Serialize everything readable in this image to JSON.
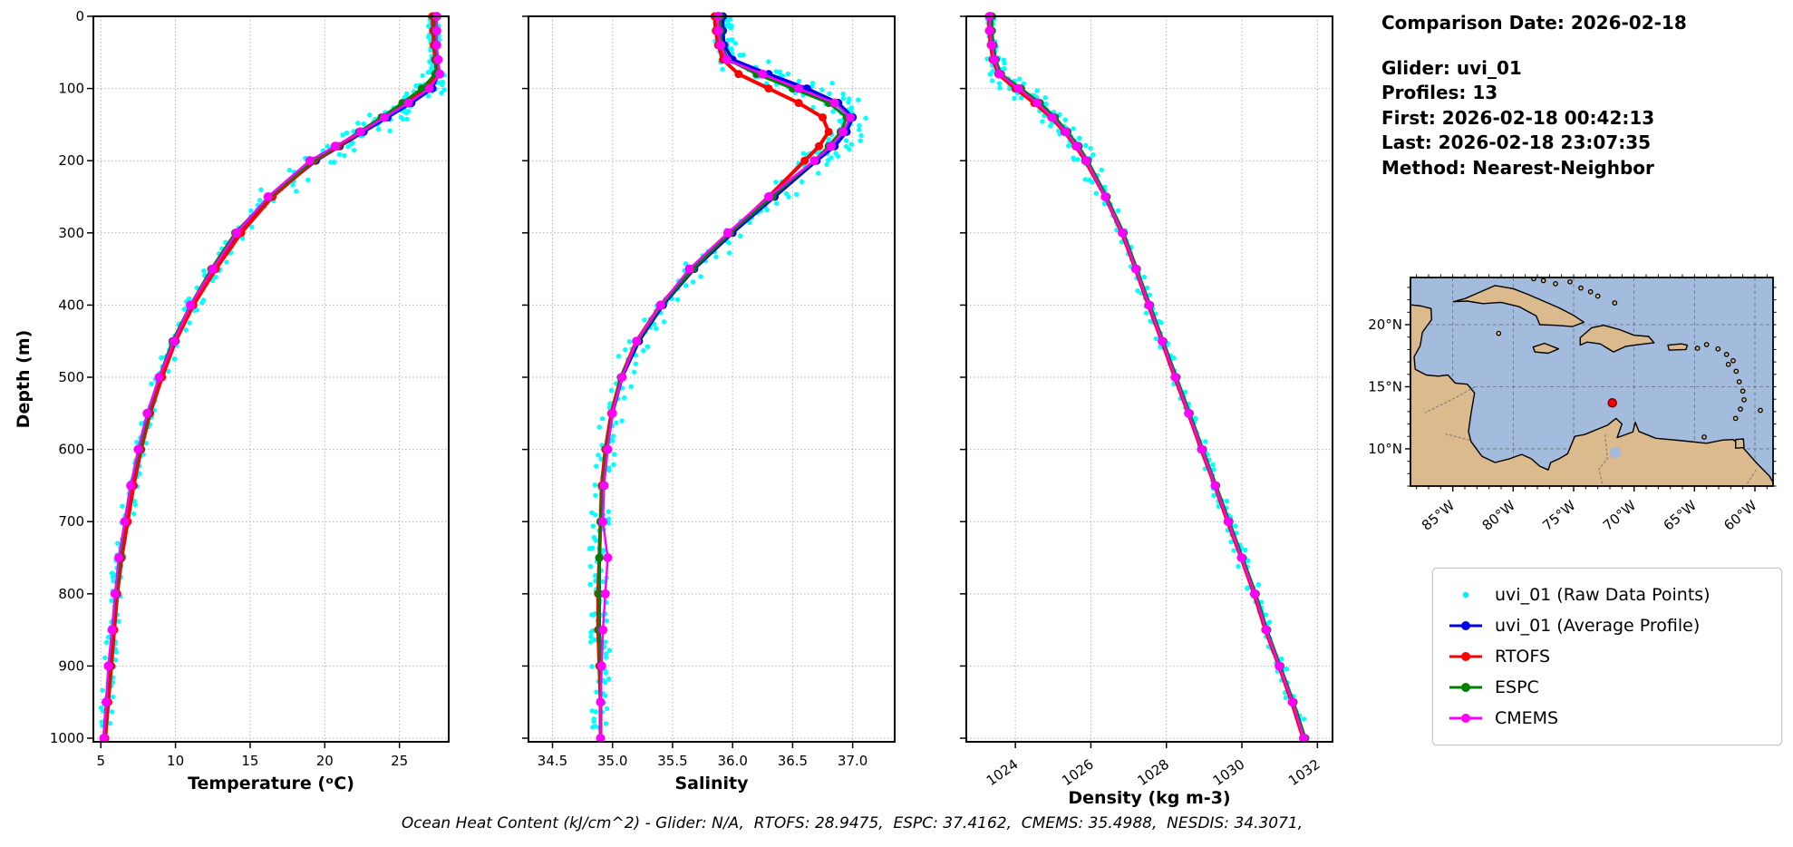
{
  "header": {
    "comparison_date": "Comparison Date: 2026-02-18",
    "glider": "Glider: uvi_01",
    "profiles": "Profiles: 13",
    "first": "First: 2026-02-18 00:42:13",
    "last": "Last: 2026-02-18 23:07:35",
    "method": "Method: Nearest-Neighbor"
  },
  "caption": {
    "text": "Ocean Heat Content (kJ/cm^2) - Glider: N/A,  RTOFS: 28.9475,  ESPC: 37.4162,  CMEMS: 35.4988,  NESDIS: 34.3071,"
  },
  "legend": {
    "items": [
      {
        "label": "uvi_01 (Raw Data Points)",
        "color": "#00EEEE",
        "style": "dot"
      },
      {
        "label": "uvi_01 (Average Profile)",
        "color": "#0000EE",
        "style": "line-dot"
      },
      {
        "label": "RTOFS",
        "color": "#FF0000",
        "style": "line-dot"
      },
      {
        "label": "ESPC",
        "color": "#008000",
        "style": "line-dot"
      },
      {
        "label": "CMEMS",
        "color": "#FF00FF",
        "style": "line-dot"
      }
    ]
  },
  "map": {
    "lon_range": [
      -88.5,
      -58.5
    ],
    "lat_range": [
      7,
      23.8
    ],
    "lon_tick_labels": [
      "85°W",
      "80°W",
      "75°W",
      "70°W",
      "65°W",
      "60°W"
    ],
    "lon_tick_values": [
      -85,
      -80,
      -75,
      -70,
      -65,
      -60
    ],
    "lat_tick_labels": [
      "10°N",
      "15°N",
      "20°N"
    ],
    "lat_tick_values": [
      10,
      15,
      20
    ],
    "marker": {
      "lon": -71.8,
      "lat": 13.7,
      "color": "#ff0000",
      "edge": "#7a0000"
    },
    "ocean_color": "#a3bcdd",
    "land_color": "#dbbb8d"
  },
  "chart_data": [
    {
      "type": "line",
      "xlabel": "Temperature (ᵒC)",
      "ylabel": "Depth (m)",
      "xlim": [
        4.5,
        28.3
      ],
      "ylim": [
        0,
        1005
      ],
      "xticks": [
        5,
        10,
        15,
        20,
        25
      ],
      "xtick_labels": [
        "5",
        "10",
        "15",
        "20",
        "25"
      ],
      "yticks": [
        0,
        100,
        200,
        300,
        400,
        500,
        600,
        700,
        800,
        900,
        1000
      ],
      "ytick_labels": [
        "0",
        "100",
        "200",
        "300",
        "400",
        "500",
        "600",
        "700",
        "800",
        "900",
        "1000"
      ],
      "grid": true,
      "depths": [
        0,
        20,
        40,
        60,
        80,
        100,
        120,
        140,
        160,
        180,
        200,
        250,
        300,
        350,
        400,
        450,
        500,
        550,
        600,
        650,
        700,
        750,
        800,
        850,
        900,
        950,
        1000
      ],
      "series": [
        {
          "name": "uvi_01 (Raw Data Points)",
          "style": "cloud",
          "color": "#00FFFF",
          "spread_base": 0.4,
          "spread_thermocline": 0.85,
          "thermocline_range": [
            70,
            250
          ],
          "values": [
            27.3,
            27.3,
            27.35,
            27.4,
            27.6,
            27.2,
            25.8,
            24.2,
            22.6,
            21.0,
            19.4,
            16.4,
            14.2,
            12.6,
            11.1,
            9.9,
            9.0,
            8.2,
            7.6,
            7.1,
            6.7,
            6.3,
            6.0,
            5.8,
            5.6,
            5.4,
            5.2
          ]
        },
        {
          "name": "uvi_01 (Average Profile)",
          "style": "line",
          "color": "#0000EE",
          "lw": 3.5,
          "ms": 4.5,
          "values": [
            27.3,
            27.3,
            27.35,
            27.4,
            27.6,
            27.2,
            25.8,
            24.2,
            22.6,
            21.0,
            19.4,
            16.4,
            14.2,
            12.6,
            11.1,
            9.9,
            9.0,
            8.2,
            7.6,
            7.1,
            6.7,
            6.3,
            6.0,
            5.8,
            5.6,
            5.4,
            5.2
          ]
        },
        {
          "name": "RTOFS",
          "style": "line",
          "color": "#FF0000",
          "lw": 4,
          "ms": 4.5,
          "values": [
            27.2,
            27.25,
            27.3,
            27.4,
            27.5,
            26.8,
            25.4,
            23.9,
            22.4,
            20.9,
            19.3,
            16.5,
            14.4,
            12.7,
            11.2,
            10.0,
            9.1,
            8.3,
            7.7,
            7.2,
            6.8,
            6.4,
            6.1,
            5.9,
            5.7,
            5.5,
            5.3
          ]
        },
        {
          "name": "ESPC",
          "style": "line",
          "color": "#008000",
          "lw": 3,
          "ms": 4.5,
          "values": [
            27.4,
            27.4,
            27.45,
            27.5,
            27.4,
            26.5,
            25.2,
            23.8,
            22.3,
            20.8,
            19.2,
            16.3,
            14.0,
            12.4,
            11.0,
            9.8,
            8.9,
            8.2,
            7.6,
            7.0,
            6.6,
            6.3,
            6.0,
            5.75,
            5.55,
            5.35,
            5.2
          ]
        },
        {
          "name": "CMEMS",
          "style": "line",
          "color": "#FF00FF",
          "lw": 2.5,
          "ms": 5,
          "values": [
            27.5,
            27.5,
            27.5,
            27.6,
            27.7,
            27.0,
            25.6,
            24.0,
            22.4,
            20.7,
            19.0,
            16.2,
            14.1,
            12.5,
            11.0,
            9.9,
            8.9,
            8.1,
            7.5,
            7.0,
            6.6,
            6.2,
            5.95,
            5.75,
            5.5,
            5.35,
            5.2
          ]
        }
      ]
    },
    {
      "type": "line",
      "xlabel": "Salinity",
      "ylabel": "",
      "xlim": [
        34.3,
        37.35
      ],
      "ylim": [
        0,
        1005
      ],
      "xticks": [
        34.5,
        35.0,
        35.5,
        36.0,
        36.5,
        37.0
      ],
      "xtick_labels": [
        "34.5",
        "35.0",
        "35.5",
        "36.0",
        "36.5",
        "37.0"
      ],
      "yticks": [
        0,
        100,
        200,
        300,
        400,
        500,
        600,
        700,
        800,
        900,
        1000
      ],
      "ytick_labels": [],
      "grid": true,
      "depths": [
        0,
        20,
        40,
        60,
        80,
        100,
        120,
        140,
        160,
        180,
        200,
        250,
        300,
        350,
        400,
        450,
        500,
        550,
        600,
        650,
        700,
        750,
        800,
        850,
        900,
        950,
        1000
      ],
      "series": [
        {
          "name": "uvi_01 (Raw Data Points)",
          "style": "cloud",
          "color": "#00FFFF",
          "spread_base": 0.08,
          "spread_thermocline": 0.13,
          "thermocline_range": [
            60,
            260
          ],
          "values": [
            35.92,
            35.92,
            35.93,
            36.0,
            36.3,
            36.62,
            36.88,
            37.0,
            36.95,
            36.85,
            36.7,
            36.35,
            36.0,
            35.68,
            35.42,
            35.22,
            35.08,
            35.0,
            34.95,
            34.92,
            34.9,
            34.89,
            34.89,
            34.89,
            34.9,
            34.9,
            34.9
          ]
        },
        {
          "name": "uvi_01 (Average Profile)",
          "style": "line",
          "color": "#0000EE",
          "lw": 3.5,
          "ms": 4.5,
          "values": [
            35.92,
            35.92,
            35.93,
            36.0,
            36.3,
            36.62,
            36.88,
            37.0,
            36.95,
            36.85,
            36.7,
            36.35,
            36.0,
            35.68,
            35.42,
            35.22,
            35.08,
            35.0,
            34.95,
            34.92,
            34.9,
            34.89,
            34.89,
            34.89,
            34.9,
            34.9,
            34.9
          ]
        },
        {
          "name": "RTOFS",
          "style": "line",
          "color": "#FF0000",
          "lw": 4,
          "ms": 4.5,
          "values": [
            35.85,
            35.86,
            35.88,
            35.92,
            36.05,
            36.3,
            36.55,
            36.75,
            36.8,
            36.72,
            36.6,
            36.3,
            35.98,
            35.66,
            35.4,
            35.2,
            35.07,
            34.99,
            34.94,
            34.91,
            34.9,
            34.89,
            34.88,
            34.88,
            34.89,
            34.9,
            34.9
          ]
        },
        {
          "name": "ESPC",
          "style": "line",
          "color": "#008000",
          "lw": 3,
          "ms": 4.5,
          "values": [
            35.9,
            35.9,
            35.91,
            35.96,
            36.2,
            36.5,
            36.8,
            36.95,
            36.9,
            36.8,
            36.68,
            36.33,
            35.98,
            35.67,
            35.41,
            35.21,
            35.07,
            35.0,
            34.95,
            34.92,
            34.9,
            34.89,
            34.89,
            34.89,
            34.9,
            34.9,
            34.9
          ]
        },
        {
          "name": "CMEMS",
          "style": "line",
          "color": "#FF00FF",
          "lw": 2.5,
          "ms": 5,
          "values": [
            35.88,
            35.88,
            35.9,
            35.95,
            36.25,
            36.55,
            36.85,
            36.98,
            36.92,
            36.82,
            36.68,
            36.3,
            35.96,
            35.64,
            35.4,
            35.2,
            35.08,
            35.0,
            34.96,
            34.93,
            34.92,
            34.96,
            34.94,
            34.92,
            34.91,
            34.9,
            34.9
          ]
        }
      ]
    },
    {
      "type": "line",
      "xlabel": "Density (kg m-3)",
      "ylabel": "",
      "xlim": [
        1022.7,
        1032.4
      ],
      "ylim": [
        0,
        1005
      ],
      "xticks": [
        1024,
        1026,
        1028,
        1030,
        1032
      ],
      "xtick_labels": [
        "1024",
        "1026",
        "1028",
        "1030",
        "1032"
      ],
      "yticks": [
        0,
        100,
        200,
        300,
        400,
        500,
        600,
        700,
        800,
        900,
        1000
      ],
      "ytick_labels": [],
      "grid": true,
      "depths": [
        0,
        20,
        40,
        60,
        80,
        100,
        120,
        140,
        160,
        180,
        200,
        250,
        300,
        350,
        400,
        450,
        500,
        550,
        600,
        650,
        700,
        750,
        800,
        850,
        900,
        950,
        1000
      ],
      "series": [
        {
          "name": "uvi_01 (Raw Data Points)",
          "style": "cloud",
          "color": "#00FFFF",
          "spread_base": 0.1,
          "spread_thermocline": 0.22,
          "thermocline_range": [
            60,
            260
          ],
          "values": [
            1023.35,
            1023.35,
            1023.4,
            1023.45,
            1023.6,
            1024.1,
            1024.6,
            1025.0,
            1025.35,
            1025.65,
            1025.9,
            1026.4,
            1026.85,
            1027.2,
            1027.55,
            1027.9,
            1028.25,
            1028.6,
            1028.95,
            1029.3,
            1029.65,
            1030.0,
            1030.35,
            1030.65,
            1031.0,
            1031.35,
            1031.65
          ]
        },
        {
          "name": "uvi_01 (Average Profile)",
          "style": "line",
          "color": "#0000EE",
          "lw": 3.5,
          "ms": 4.5,
          "values": [
            1023.35,
            1023.35,
            1023.4,
            1023.45,
            1023.6,
            1024.1,
            1024.6,
            1025.0,
            1025.35,
            1025.65,
            1025.9,
            1026.4,
            1026.85,
            1027.2,
            1027.55,
            1027.9,
            1028.25,
            1028.6,
            1028.95,
            1029.3,
            1029.65,
            1030.0,
            1030.35,
            1030.65,
            1031.0,
            1031.35,
            1031.65
          ]
        },
        {
          "name": "RTOFS",
          "style": "line",
          "color": "#FF0000",
          "lw": 4,
          "ms": 4.5,
          "values": [
            1023.3,
            1023.3,
            1023.35,
            1023.4,
            1023.55,
            1024.0,
            1024.5,
            1024.95,
            1025.3,
            1025.6,
            1025.85,
            1026.38,
            1026.82,
            1027.18,
            1027.52,
            1027.88,
            1028.22,
            1028.58,
            1028.92,
            1029.28,
            1029.62,
            1029.98,
            1030.32,
            1030.62,
            1030.98,
            1031.32,
            1031.62
          ]
        },
        {
          "name": "ESPC",
          "style": "line",
          "color": "#008000",
          "lw": 3,
          "ms": 4.5,
          "values": [
            1023.38,
            1023.38,
            1023.42,
            1023.48,
            1023.62,
            1024.15,
            1024.65,
            1025.05,
            1025.38,
            1025.68,
            1025.92,
            1026.42,
            1026.87,
            1027.22,
            1027.57,
            1027.92,
            1028.27,
            1028.62,
            1028.97,
            1029.32,
            1029.67,
            1030.02,
            1030.37,
            1030.67,
            1031.02,
            1031.37,
            1031.68
          ]
        },
        {
          "name": "CMEMS",
          "style": "line",
          "color": "#FF00FF",
          "lw": 2.5,
          "ms": 5,
          "values": [
            1023.32,
            1023.32,
            1023.38,
            1023.44,
            1023.58,
            1024.08,
            1024.58,
            1024.98,
            1025.33,
            1025.63,
            1025.88,
            1026.38,
            1026.84,
            1027.19,
            1027.54,
            1027.89,
            1028.24,
            1028.59,
            1028.94,
            1029.29,
            1029.64,
            1029.99,
            1030.34,
            1030.64,
            1030.99,
            1031.34,
            1031.64
          ]
        }
      ]
    }
  ]
}
